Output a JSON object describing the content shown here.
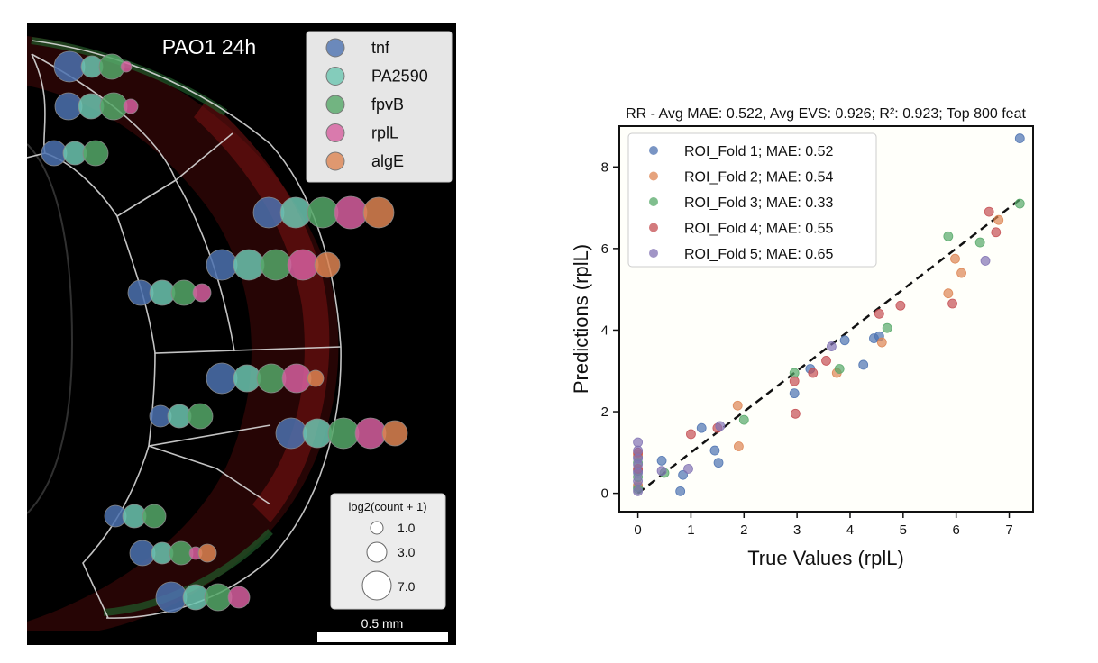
{
  "colors": {
    "tnf": "#4c72b0",
    "PA2590": "#6cc5b0",
    "fpvB": "#55a868",
    "rplL": "#d65f9f",
    "algE": "#dd8452",
    "fold1": "#4c72b0",
    "fold2": "#dd8452",
    "fold3": "#55a868",
    "fold4": "#c44e52",
    "fold5": "#8172b3"
  },
  "tissue_panel": {
    "title": "PAO1 24h",
    "legend": [
      "tnf",
      "PA2590",
      "fpvB",
      "rplL",
      "algE"
    ],
    "size_legend_title": "log2(count + 1)",
    "size_legend_values": [
      "1.0",
      "3.0",
      "7.0"
    ],
    "scalebar_label": "0.5 mm"
  },
  "chart_data": {
    "type": "scatter",
    "title": "RR - Avg MAE: 0.522, Avg EVS: 0.926; R²: 0.923; Top 800 feat",
    "xlabel": "True Values (rplL)",
    "ylabel": "Predictions (rplL)",
    "xlim": [
      -0.35,
      7.45
    ],
    "ylim": [
      -0.45,
      9.0
    ],
    "xticks": [
      0,
      1,
      2,
      3,
      4,
      5,
      6,
      7
    ],
    "yticks": [
      0,
      2,
      4,
      6,
      8
    ],
    "reference_line": {
      "style": "dashed",
      "from": [
        0,
        0
      ],
      "to": [
        7.2,
        7.2
      ]
    },
    "legend_position": "upper-left",
    "series": [
      {
        "name": "ROI_Fold 1; MAE: 0.52",
        "color_key": "fold1",
        "points": [
          [
            0,
            0.15
          ],
          [
            0,
            0.55
          ],
          [
            0,
            0.9
          ],
          [
            0.45,
            0.8
          ],
          [
            0.8,
            0.05
          ],
          [
            0.85,
            0.45
          ],
          [
            1.2,
            1.6
          ],
          [
            1.45,
            1.05
          ],
          [
            1.52,
            0.75
          ],
          [
            2.95,
            2.45
          ],
          [
            3.25,
            3.05
          ],
          [
            3.9,
            3.75
          ],
          [
            4.25,
            3.15
          ],
          [
            4.45,
            3.8
          ],
          [
            4.55,
            3.85
          ],
          [
            7.2,
            8.7
          ]
        ]
      },
      {
        "name": "ROI_Fold 2; MAE: 0.54",
        "color_key": "fold2",
        "points": [
          [
            0,
            0.2
          ],
          [
            0,
            0.95
          ],
          [
            1.88,
            2.15
          ],
          [
            1.9,
            1.15
          ],
          [
            3.75,
            2.95
          ],
          [
            4.6,
            3.7
          ],
          [
            5.85,
            4.9
          ],
          [
            5.98,
            5.75
          ],
          [
            6.1,
            5.4
          ],
          [
            6.8,
            6.7
          ]
        ]
      },
      {
        "name": "ROI_Fold 3; MAE: 0.33",
        "color_key": "fold3",
        "points": [
          [
            0,
            0.1
          ],
          [
            0,
            0.4
          ],
          [
            0,
            0.75
          ],
          [
            0.5,
            0.5
          ],
          [
            2.0,
            1.8
          ],
          [
            2.95,
            2.95
          ],
          [
            3.8,
            3.05
          ],
          [
            4.7,
            4.05
          ],
          [
            5.85,
            6.3
          ],
          [
            6.45,
            6.15
          ],
          [
            7.2,
            7.1
          ]
        ]
      },
      {
        "name": "ROI_Fold 4; MAE: 0.55",
        "color_key": "fold4",
        "points": [
          [
            0,
            0.6
          ],
          [
            0,
            1.0
          ],
          [
            1.0,
            1.45
          ],
          [
            1.5,
            1.6
          ],
          [
            2.95,
            2.75
          ],
          [
            2.97,
            1.95
          ],
          [
            3.3,
            2.95
          ],
          [
            3.55,
            3.25
          ],
          [
            4.55,
            4.4
          ],
          [
            4.95,
            4.6
          ],
          [
            5.93,
            4.65
          ],
          [
            6.62,
            6.9
          ],
          [
            6.75,
            6.4
          ]
        ]
      },
      {
        "name": "ROI_Fold 5; MAE: 0.65",
        "color_key": "fold5",
        "points": [
          [
            0,
            0.05
          ],
          [
            0,
            0.3
          ],
          [
            0,
            0.5
          ],
          [
            0,
            0.7
          ],
          [
            0,
            0.85
          ],
          [
            0,
            1.05
          ],
          [
            0,
            1.25
          ],
          [
            0.45,
            0.55
          ],
          [
            0.95,
            0.6
          ],
          [
            1.55,
            1.65
          ],
          [
            3.65,
            3.6
          ],
          [
            6.55,
            5.7
          ]
        ]
      }
    ]
  }
}
